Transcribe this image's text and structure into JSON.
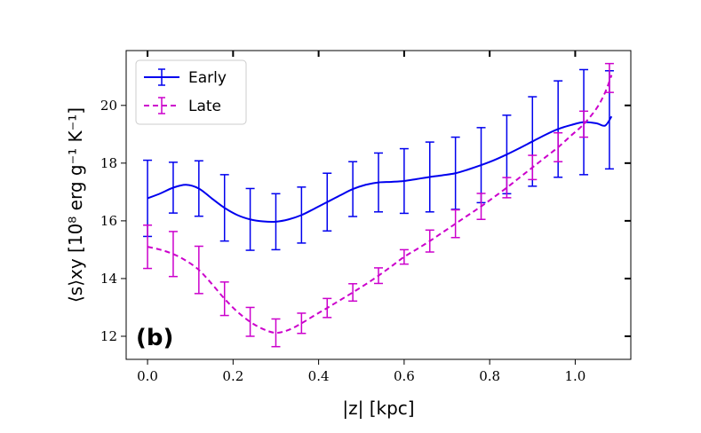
{
  "chart_data": {
    "type": "line",
    "panel_label": "(b)",
    "xlabel": "|z| [kpc]",
    "ylabel": "⟨s⟩xy [10⁸ erg g⁻¹ K⁻¹]",
    "xlim": [
      -0.05,
      1.13
    ],
    "ylim": [
      11.2,
      21.9
    ],
    "xticks": [
      0.0,
      0.2,
      0.4,
      0.6,
      0.8,
      1.0
    ],
    "xtick_labels": [
      "0.0",
      "0.2",
      "0.4",
      "0.6",
      "0.8",
      "1.0"
    ],
    "yticks": [
      12,
      14,
      16,
      18,
      20
    ],
    "ytick_labels": [
      "12",
      "14",
      "16",
      "18",
      "20"
    ],
    "legend_position": "top-left",
    "series": [
      {
        "name": "Early",
        "color": "#0000ee",
        "style": "solid",
        "curve": {
          "x": [
            0.0,
            0.03,
            0.06,
            0.09,
            0.12,
            0.15,
            0.18,
            0.21,
            0.24,
            0.27,
            0.3,
            0.33,
            0.36,
            0.39,
            0.42,
            0.45,
            0.48,
            0.51,
            0.54,
            0.57,
            0.6,
            0.63,
            0.66,
            0.69,
            0.72,
            0.75,
            0.78,
            0.81,
            0.84,
            0.87,
            0.9,
            0.93,
            0.96,
            0.99,
            1.02,
            1.05,
            1.07,
            1.085
          ],
          "y": [
            16.78,
            16.95,
            17.15,
            17.25,
            17.12,
            16.78,
            16.45,
            16.2,
            16.05,
            15.98,
            15.97,
            16.05,
            16.2,
            16.42,
            16.65,
            16.88,
            17.1,
            17.25,
            17.33,
            17.35,
            17.38,
            17.45,
            17.52,
            17.58,
            17.65,
            17.78,
            17.93,
            18.1,
            18.3,
            18.52,
            18.75,
            18.98,
            19.18,
            19.32,
            19.42,
            19.38,
            19.3,
            19.62
          ]
        },
        "errorbars": {
          "x": [
            0.0,
            0.06,
            0.12,
            0.18,
            0.24,
            0.3,
            0.36,
            0.42,
            0.48,
            0.54,
            0.6,
            0.66,
            0.72,
            0.78,
            0.84,
            0.9,
            0.96,
            1.02,
            1.08
          ],
          "y": [
            16.78,
            17.15,
            17.12,
            16.45,
            16.05,
            15.97,
            16.2,
            16.65,
            17.1,
            17.33,
            17.38,
            17.52,
            17.65,
            17.93,
            18.3,
            18.75,
            19.18,
            19.42,
            19.5
          ],
          "yerr": [
            1.32,
            0.88,
            0.96,
            1.15,
            1.07,
            0.97,
            0.97,
            1.0,
            0.95,
            1.02,
            1.12,
            1.21,
            1.25,
            1.3,
            1.36,
            1.55,
            1.67,
            1.82,
            1.7
          ]
        }
      },
      {
        "name": "Late",
        "color": "#cc00cc",
        "style": "dashed",
        "curve": {
          "x": [
            0.0,
            0.03,
            0.06,
            0.09,
            0.12,
            0.15,
            0.18,
            0.21,
            0.24,
            0.27,
            0.3,
            0.33,
            0.36,
            0.39,
            0.42,
            0.45,
            0.48,
            0.51,
            0.54,
            0.57,
            0.6,
            0.63,
            0.66,
            0.69,
            0.72,
            0.75,
            0.78,
            0.81,
            0.84,
            0.87,
            0.9,
            0.93,
            0.96,
            0.99,
            1.02,
            1.05,
            1.07,
            1.085
          ],
          "y": [
            15.1,
            15.0,
            14.85,
            14.62,
            14.3,
            13.82,
            13.3,
            12.85,
            12.5,
            12.25,
            12.12,
            12.22,
            12.45,
            12.72,
            12.98,
            13.25,
            13.52,
            13.8,
            14.1,
            14.42,
            14.75,
            15.02,
            15.3,
            15.6,
            15.9,
            16.2,
            16.5,
            16.82,
            17.15,
            17.5,
            17.85,
            18.2,
            18.55,
            18.95,
            19.35,
            19.9,
            20.45,
            21.05
          ]
        },
        "errorbars": {
          "x": [
            0.0,
            0.06,
            0.12,
            0.18,
            0.24,
            0.3,
            0.36,
            0.42,
            0.48,
            0.54,
            0.6,
            0.66,
            0.72,
            0.78,
            0.84,
            0.9,
            0.96,
            1.02,
            1.08
          ],
          "y": [
            15.1,
            14.85,
            14.3,
            13.3,
            12.5,
            12.12,
            12.45,
            12.98,
            13.52,
            14.1,
            14.75,
            15.3,
            15.9,
            16.5,
            17.15,
            17.85,
            18.55,
            19.35,
            20.95
          ],
          "yerr": [
            0.75,
            0.78,
            0.82,
            0.58,
            0.5,
            0.48,
            0.35,
            0.33,
            0.3,
            0.27,
            0.25,
            0.38,
            0.48,
            0.45,
            0.35,
            0.42,
            0.5,
            0.45,
            0.5
          ]
        }
      }
    ]
  }
}
